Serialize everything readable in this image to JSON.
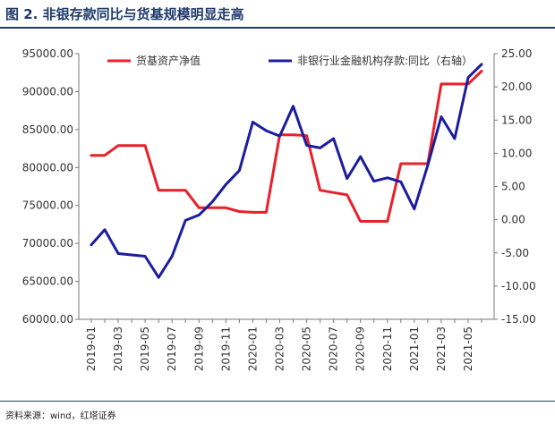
{
  "figure": {
    "title": "图 2. 非银存款同比与货基规模明显走高",
    "source": "资料来源：wind，红塔证券"
  },
  "chart_data": {
    "type": "line",
    "categories": [
      "2019-01",
      "2019-02",
      "2019-03",
      "2019-04",
      "2019-05",
      "2019-06",
      "2019-07",
      "2019-08",
      "2019-09",
      "2019-10",
      "2019-11",
      "2019-12",
      "2020-01",
      "2020-02",
      "2020-03",
      "2020-04",
      "2020-05",
      "2020-06",
      "2020-07",
      "2020-08",
      "2020-09",
      "2020-10",
      "2020-11",
      "2020-12",
      "2021-01",
      "2021-02",
      "2021-03",
      "2021-04",
      "2021-05",
      "2021-06"
    ],
    "x_tick_labels": [
      "2019-01",
      "2019-03",
      "2019-05",
      "2019-07",
      "2019-09",
      "2019-11",
      "2020-01",
      "2020-03",
      "2020-05",
      "2020-07",
      "2020-09",
      "2020-11",
      "2021-01",
      "2021-03",
      "2021-05"
    ],
    "y_left": {
      "min": 60000,
      "max": 95000,
      "step": 5000,
      "tick_labels": [
        "95000.00",
        "90000.00",
        "85000.00",
        "80000.00",
        "75000.00",
        "70000.00",
        "65000.00",
        "60000.00"
      ]
    },
    "y_right": {
      "min": -15,
      "max": 25,
      "step": 5,
      "tick_labels": [
        "25.00",
        "20.00",
        "15.00",
        "10.00",
        "5.00",
        "0.00",
        "-5.00",
        "-10.00",
        "-15.00"
      ]
    },
    "legend_position": "top",
    "series": [
      {
        "name": "货基资产净值",
        "axis": "left",
        "color": "#e8202a",
        "values": [
          81600,
          81600,
          82900,
          82900,
          82900,
          77000,
          77000,
          77000,
          74700,
          74700,
          74700,
          74200,
          74100,
          74100,
          84300,
          84300,
          84200,
          77000,
          76700,
          76400,
          72900,
          72900,
          72900,
          80500,
          80500,
          80500,
          91000,
          91000,
          91000,
          92700
        ]
      },
      {
        "name": "非银行业金融机构存款:同比（右轴）",
        "axis": "right",
        "color": "#1c1c9e",
        "values": [
          -3.8,
          -1.5,
          -5.1,
          -5.3,
          -5.5,
          -8.7,
          -5.5,
          -0.1,
          0.7,
          2.7,
          5.3,
          7.4,
          14.7,
          13.4,
          12.6,
          17.1,
          11.2,
          10.8,
          12.2,
          6.2,
          9.5,
          5.8,
          6.3,
          5.7,
          1.6,
          8.2,
          15.5,
          12.2,
          21.4,
          23.4
        ]
      }
    ]
  }
}
